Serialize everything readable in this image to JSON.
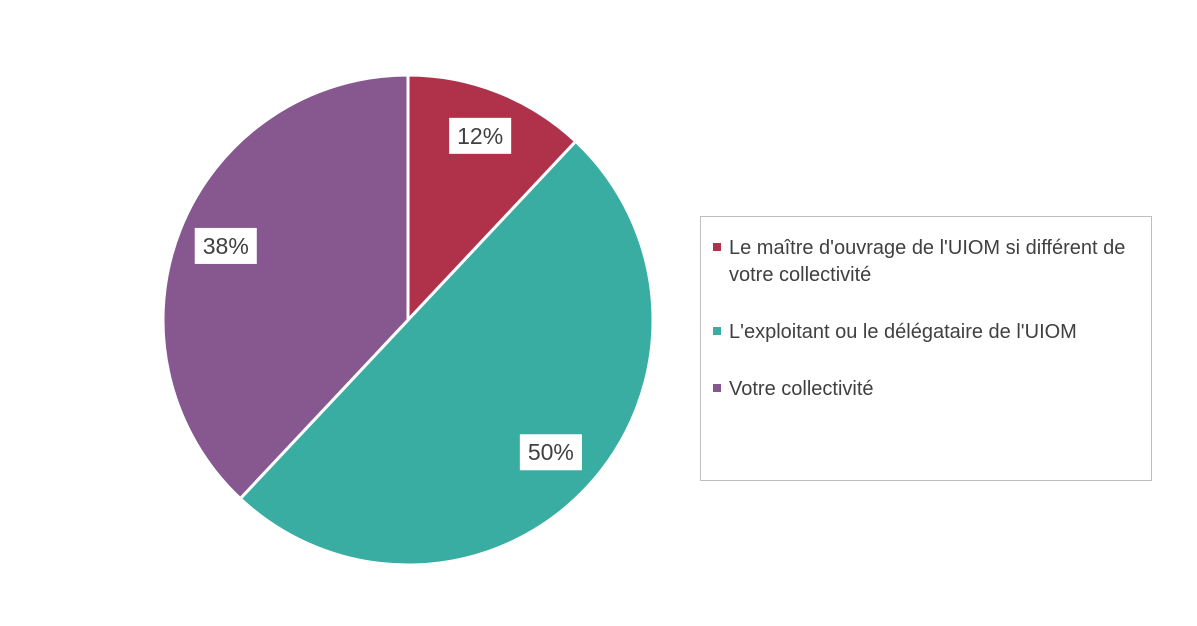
{
  "chart_data": {
    "type": "pie",
    "categories": [
      "Le maître d'ouvrage de l'UIOM si différent de votre collectivité",
      "L'exploitant ou le délégataire de l'UIOM",
      "Votre collectivité"
    ],
    "values": [
      12,
      50,
      38
    ],
    "value_labels": [
      "12%",
      "50%",
      "38%"
    ],
    "colors": [
      "#b0324a",
      "#3aada3",
      "#87578f"
    ],
    "legend": "right"
  }
}
